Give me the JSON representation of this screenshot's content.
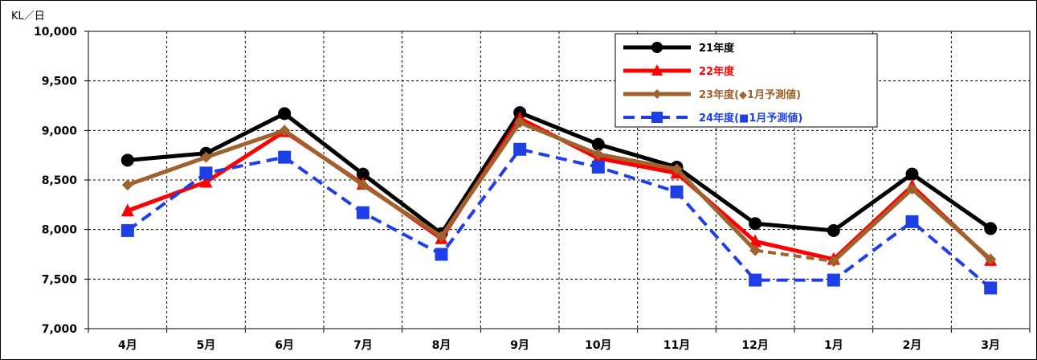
{
  "chart_data": {
    "type": "line",
    "unit_label": "KL／日",
    "categories": [
      "4月",
      "5月",
      "6月",
      "7月",
      "8月",
      "9月",
      "10月",
      "11月",
      "12月",
      "1月",
      "2月",
      "3月"
    ],
    "ylim": [
      7000,
      10000
    ],
    "yticks": [
      7000,
      7500,
      8000,
      8500,
      9000,
      9500,
      10000
    ],
    "ytick_labels": [
      "7,000",
      "7,500",
      "8,000",
      "8,500",
      "9,000",
      "9,500",
      "10,000"
    ],
    "grid": true,
    "legend_position": "top-right",
    "series": [
      {
        "name": "21年度",
        "color": "#000000",
        "marker": "circle",
        "dash": "solid",
        "values": [
          8700,
          8770,
          9170,
          8560,
          7960,
          9180,
          8860,
          8630,
          8060,
          7990,
          8560,
          8010
        ],
        "forecast_from": null
      },
      {
        "name": "22年度",
        "color": "#ff0000",
        "marker": "triangle",
        "dash": "solid",
        "values": [
          8190,
          8480,
          8990,
          8460,
          7910,
          9120,
          8720,
          8570,
          7880,
          7700,
          8440,
          7690
        ],
        "forecast_from": null
      },
      {
        "name": "23年度(◆1月予測値)",
        "color": "#a0622d",
        "marker": "diamond",
        "dash": "solid",
        "values": [
          8450,
          8730,
          9000,
          8450,
          7930,
          9080,
          8760,
          8610,
          7790,
          7680,
          8410,
          7700
        ],
        "forecast_from": 8
      },
      {
        "name": "24年度(■1月予測値)",
        "color": "#1f3fe6",
        "marker": "square",
        "dash": "dashed",
        "values": [
          7990,
          8570,
          8730,
          8170,
          7750,
          8810,
          8630,
          8380,
          7490,
          7490,
          8080,
          7410
        ],
        "forecast_from": null
      }
    ]
  }
}
